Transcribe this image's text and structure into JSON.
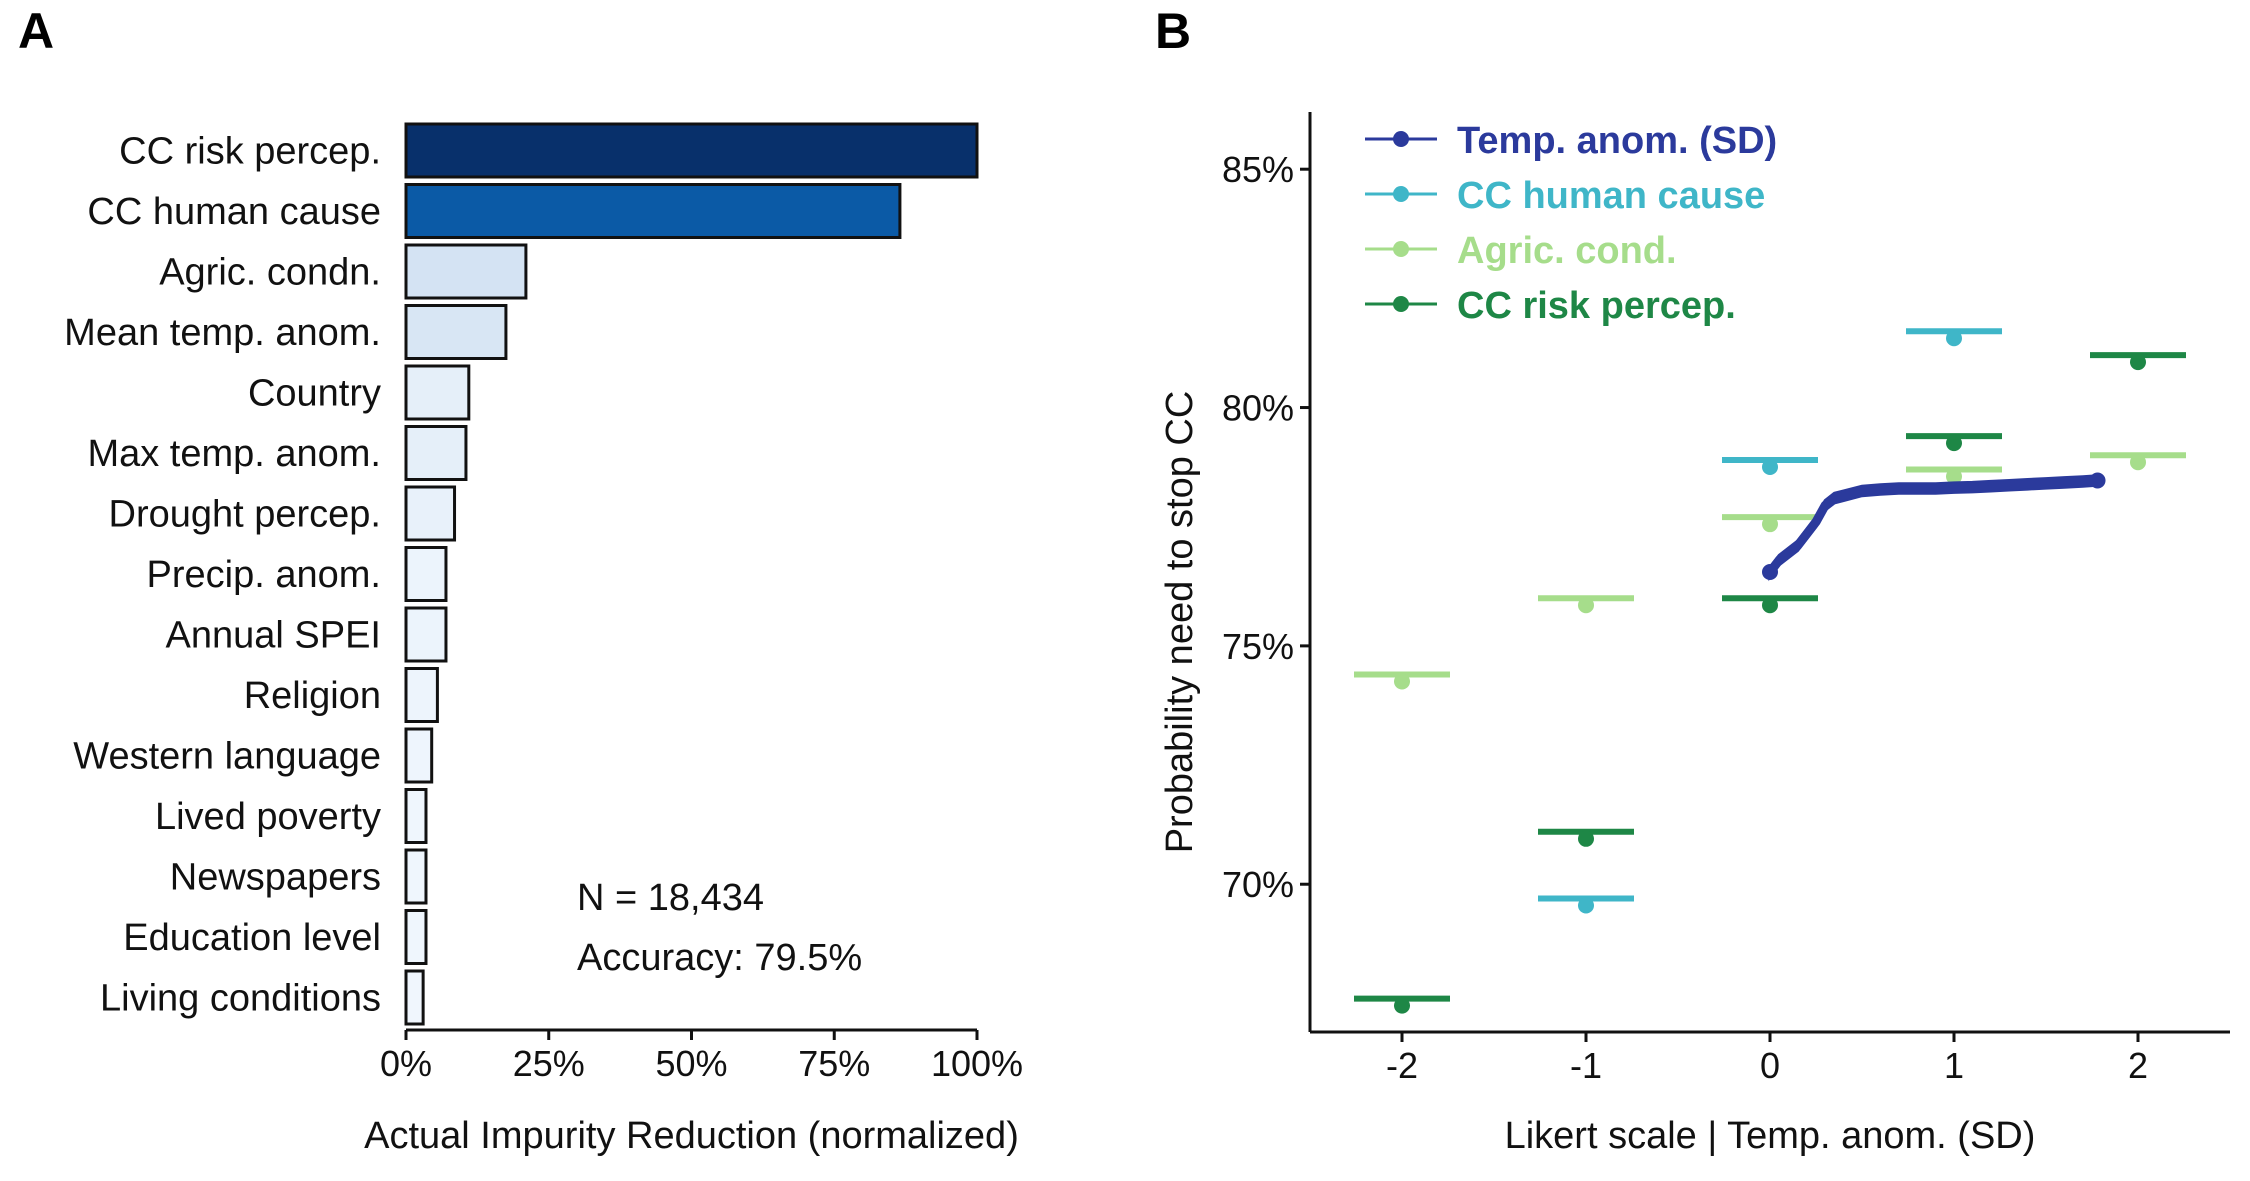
{
  "panels": {
    "a_letter": "A",
    "b_letter": "B"
  },
  "chart_data": [
    {
      "type": "bar",
      "orientation": "horizontal",
      "categories": [
        "CC risk percep.",
        "CC human cause",
        "Agric. condn.",
        "Mean temp. anom.",
        "Country",
        "Max temp. anom.",
        "Drought percep.",
        "Precip. anom.",
        "Annual SPEI",
        "Religion",
        "Western language",
        "Lived poverty",
        "Newspapers",
        "Education level",
        "Living conditions"
      ],
      "values": [
        100,
        86.5,
        21,
        17.5,
        11,
        10.5,
        8.5,
        7,
        7,
        5.5,
        4.5,
        3.5,
        3.5,
        3.5,
        3
      ],
      "colors": [
        "#08306b",
        "#0b5aa6",
        "#d4e3f3",
        "#d8e6f4",
        "#e5eff9",
        "#e5eff9",
        "#e8f1fa",
        "#ecf4fc",
        "#ecf4fc",
        "#edf4fc",
        "#eef5fd",
        "#eff6fd",
        "#eff6fd",
        "#eff6fd",
        "#f0f6fd"
      ],
      "xlabel": "Actual Impurity Reduction (normalized)",
      "xlim": [
        0,
        100
      ],
      "xticks": [
        "0%",
        "25%",
        "50%",
        "75%",
        "100%"
      ],
      "annotations": [
        "N = 18,434",
        "Accuracy: 79.5%"
      ],
      "grid": false
    },
    {
      "type": "scatter",
      "xlabel": "Likert scale | Temp. anom. (SD)",
      "ylabel": "Probability need to stop CC",
      "xlim": [
        -2.5,
        2.5
      ],
      "ylim": [
        66.9,
        86.2
      ],
      "xticks": [
        "-2",
        "-1",
        "0",
        "1",
        "2"
      ],
      "yticks": [
        "70%",
        "75%",
        "80%",
        "85%"
      ],
      "legend_position": "top-left",
      "grid": false,
      "series": [
        {
          "name": "Temp. anom. (SD)",
          "color": "#2b3a9c",
          "style": "curve",
          "x": [
            0,
            0.05,
            0.1,
            0.15,
            0.2,
            0.25,
            0.3,
            0.35,
            0.4,
            0.5,
            0.6,
            0.7,
            0.8,
            0.9,
            1.0,
            1.1,
            1.2,
            1.3,
            1.4,
            1.5,
            1.6,
            1.7,
            1.78
          ],
          "y": [
            76.55,
            76.8,
            76.95,
            77.1,
            77.35,
            77.6,
            77.95,
            78.1,
            78.15,
            78.25,
            78.28,
            78.3,
            78.3,
            78.3,
            78.32,
            78.33,
            78.35,
            78.37,
            78.39,
            78.41,
            78.43,
            78.45,
            78.47
          ]
        },
        {
          "name": "CC human cause",
          "color": "#3fb6c8",
          "style": "point_with_bar",
          "x": [
            -1,
            0,
            1
          ],
          "y": [
            69.7,
            78.9,
            81.6
          ]
        },
        {
          "name": "Agric. cond.",
          "color": "#a6dd8b",
          "style": "point_with_bar",
          "x": [
            -2,
            -1,
            0,
            1,
            2
          ],
          "y": [
            74.4,
            76.0,
            77.7,
            78.7,
            79.0
          ]
        },
        {
          "name": "CC risk percep.",
          "color": "#1e8746",
          "style": "point_with_bar",
          "x": [
            -2,
            -1,
            0,
            1,
            2
          ],
          "y": [
            67.6,
            71.1,
            76.0,
            79.4,
            81.1
          ]
        }
      ]
    }
  ]
}
